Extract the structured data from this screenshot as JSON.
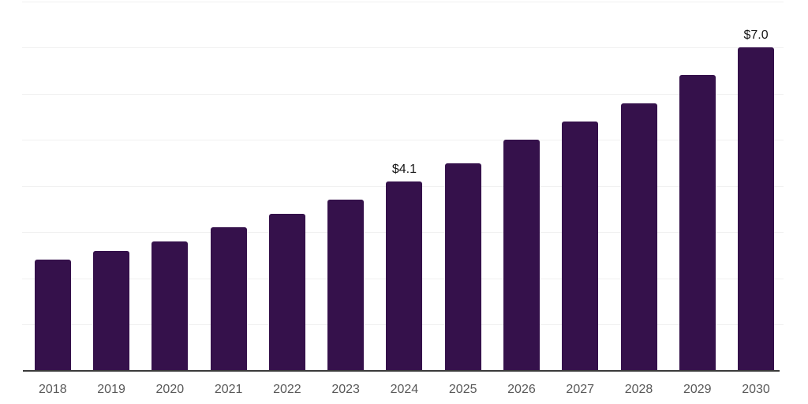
{
  "chart_data": {
    "type": "bar",
    "title": "",
    "xlabel": "",
    "ylabel": "",
    "categories": [
      "2018",
      "2019",
      "2020",
      "2021",
      "2022",
      "2023",
      "2024",
      "2025",
      "2026",
      "2027",
      "2028",
      "2029",
      "2030"
    ],
    "values": [
      2.4,
      2.6,
      2.8,
      3.1,
      3.4,
      3.7,
      4.1,
      4.5,
      5.0,
      5.4,
      5.8,
      6.4,
      7.0
    ],
    "data_labels": [
      {
        "category": "2024",
        "label": "$4.1"
      },
      {
        "category": "2030",
        "label": "$7.0"
      }
    ],
    "ylim": [
      0,
      8
    ],
    "gridlines": {
      "horizontal": true,
      "interval": 1,
      "y_tick_labels_shown": false
    },
    "legend": "none"
  },
  "style": {
    "bar_color": "#35114B",
    "axis_line_color": "#3b3b3b",
    "gridline_color": "#f0f0f0",
    "x_label_color": "#595959",
    "data_label_color": "#161616",
    "background": "#ffffff"
  }
}
